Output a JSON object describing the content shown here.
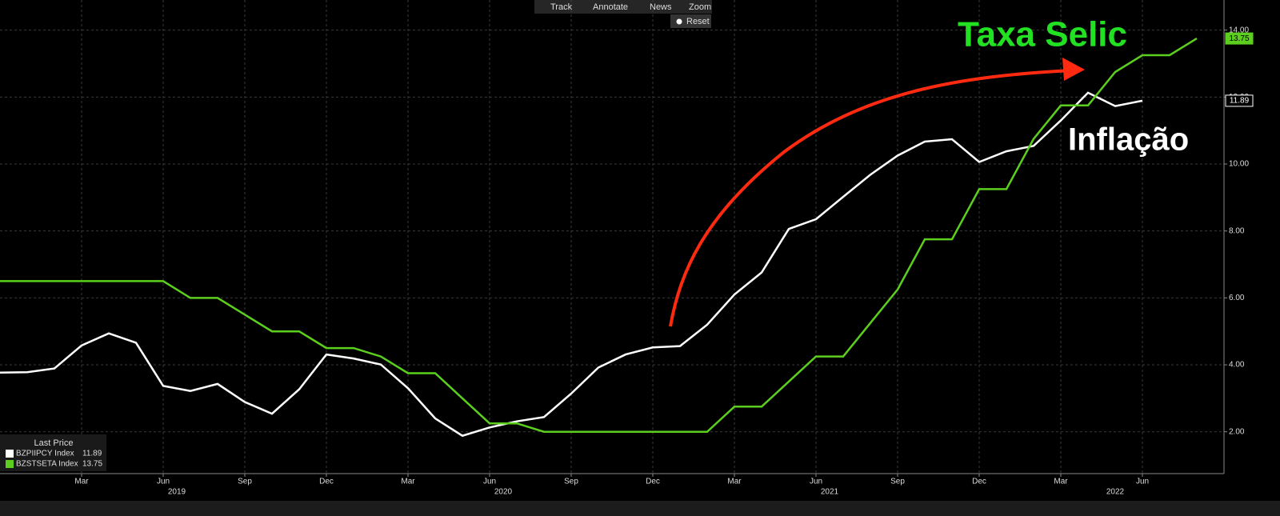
{
  "chart_data": {
    "type": "line",
    "toolbar": [
      "Track",
      "Annotate",
      "News",
      "Zoom"
    ],
    "reset_label": "Reset",
    "legend_title": "Last Price",
    "annotations": [
      "Taxa Selic",
      "Inflação"
    ],
    "x": [
      "2018-12",
      "2019-01",
      "2019-02",
      "2019-03",
      "2019-04",
      "2019-05",
      "2019-06",
      "2019-07",
      "2019-08",
      "2019-09",
      "2019-10",
      "2019-11",
      "2019-12",
      "2020-01",
      "2020-02",
      "2020-03",
      "2020-04",
      "2020-05",
      "2020-06",
      "2020-07",
      "2020-08",
      "2020-09",
      "2020-10",
      "2020-11",
      "2020-12",
      "2021-01",
      "2021-02",
      "2021-03",
      "2021-04",
      "2021-05",
      "2021-06",
      "2021-07",
      "2021-08",
      "2021-09",
      "2021-10",
      "2021-11",
      "2021-12",
      "2022-01",
      "2022-02",
      "2022-03",
      "2022-04",
      "2022-05",
      "2022-06",
      "2022-07",
      "2022-08"
    ],
    "series": [
      {
        "name": "BZPIIPCY Index",
        "color": "#ffffff",
        "values": [
          3.77,
          3.78,
          3.89,
          4.58,
          4.94,
          4.66,
          3.37,
          3.22,
          3.43,
          2.89,
          2.54,
          3.27,
          4.31,
          4.19,
          4.01,
          3.3,
          2.4,
          1.88,
          2.13,
          2.31,
          2.44,
          3.14,
          3.92,
          4.31,
          4.52,
          4.56,
          5.2,
          6.1,
          6.76,
          8.06,
          8.35,
          9.02,
          9.68,
          10.25,
          10.67,
          10.74,
          10.06,
          10.38,
          10.54,
          11.3,
          12.13,
          11.73,
          11.89,
          null,
          null
        ]
      },
      {
        "name": "BZSTSETA Index",
        "color": "#5ccf1e",
        "values": [
          6.5,
          6.5,
          6.5,
          6.5,
          6.5,
          6.5,
          6.5,
          6.0,
          6.0,
          5.5,
          5.0,
          5.0,
          4.5,
          4.5,
          4.25,
          3.75,
          3.75,
          3.0,
          2.25,
          2.25,
          2.0,
          2.0,
          2.0,
          2.0,
          2.0,
          2.0,
          2.0,
          2.75,
          2.75,
          3.5,
          4.25,
          4.25,
          5.25,
          6.25,
          7.75,
          7.75,
          9.25,
          9.25,
          10.75,
          11.75,
          11.75,
          12.75,
          13.25,
          13.25,
          13.75
        ]
      }
    ],
    "xlim": [
      "2018-12",
      "2022-09"
    ],
    "xticks": [
      {
        "value": "2019-03",
        "label": "Mar"
      },
      {
        "value": "2019-06",
        "label": "Jun"
      },
      {
        "value": "2019-09",
        "label": "Sep"
      },
      {
        "value": "2019-12",
        "label": "Dec"
      },
      {
        "value": "2020-03",
        "label": "Mar"
      },
      {
        "value": "2020-06",
        "label": "Jun"
      },
      {
        "value": "2020-09",
        "label": "Sep"
      },
      {
        "value": "2020-12",
        "label": "Dec"
      },
      {
        "value": "2021-03",
        "label": "Mar"
      },
      {
        "value": "2021-06",
        "label": "Jun"
      },
      {
        "value": "2021-09",
        "label": "Sep"
      },
      {
        "value": "2021-12",
        "label": "Dec"
      },
      {
        "value": "2022-03",
        "label": "Mar"
      },
      {
        "value": "2022-06",
        "label": "Jun"
      }
    ],
    "year_labels": [
      "2019",
      "2020",
      "2021",
      "2022"
    ],
    "ylim": [
      0.75,
      14.9
    ],
    "yticks": [
      {
        "value": 2,
        "label": "2.00"
      },
      {
        "value": 4,
        "label": "4.00"
      },
      {
        "value": 6,
        "label": "6.00"
      },
      {
        "value": 8,
        "label": "8.00"
      },
      {
        "value": 10,
        "label": "10.00"
      },
      {
        "value": 12,
        "label": "12.00"
      },
      {
        "value": 14,
        "label": "14.00"
      }
    ],
    "grid": true
  }
}
